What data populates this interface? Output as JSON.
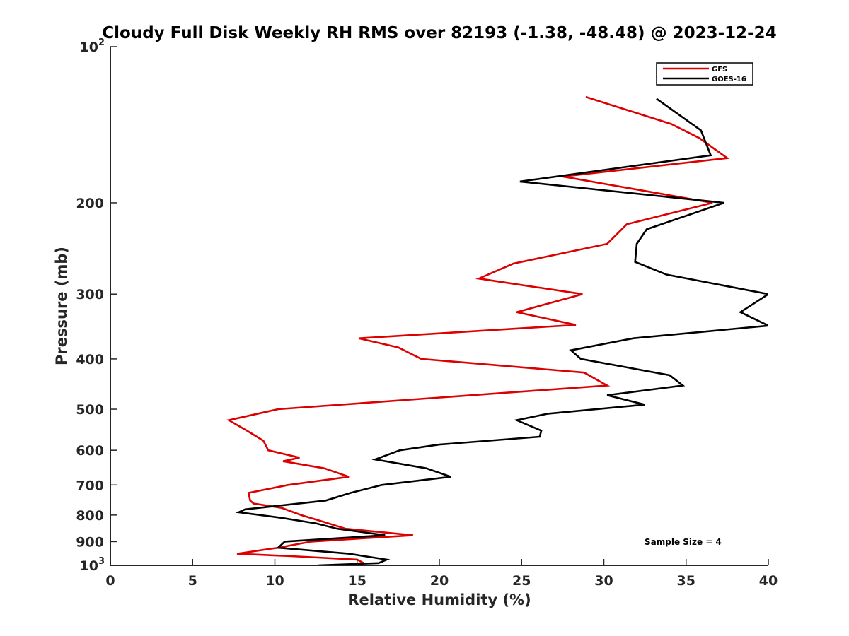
{
  "chart_data": {
    "type": "line",
    "title": "Cloudy Full Disk Weekly RH RMS over 82193 (-1.38, -48.48) @ 2023-12-24",
    "xlabel": "Relative Humidity (%)",
    "ylabel": "Pressure (mb)",
    "xlim": [
      0,
      40
    ],
    "ylim": [
      100,
      1000
    ],
    "y_scale": "log",
    "y_reversed": true,
    "grid": false,
    "legend_position": "top-right",
    "x_ticks": [
      0,
      5,
      10,
      15,
      20,
      25,
      30,
      35,
      40
    ],
    "y_ticks": [
      {
        "value": 100,
        "label": "10",
        "sup": "2"
      },
      {
        "value": 200,
        "label": "200"
      },
      {
        "value": 300,
        "label": "300"
      },
      {
        "value": 400,
        "label": "400"
      },
      {
        "value": 500,
        "label": "500"
      },
      {
        "value": 600,
        "label": "600"
      },
      {
        "value": 700,
        "label": "700"
      },
      {
        "value": 800,
        "label": "800"
      },
      {
        "value": 900,
        "label": "900"
      },
      {
        "value": 1000,
        "label": "10",
        "sup": "3"
      }
    ],
    "annotation": "Sample Size = 4",
    "series": [
      {
        "name": "GFS",
        "color": "#dd0000",
        "points": [
          [
            28.9,
            125
          ],
          [
            34.1,
            141
          ],
          [
            35.8,
            150
          ],
          [
            37.5,
            164
          ],
          [
            27.5,
            178
          ],
          [
            36.6,
            200
          ],
          [
            31.4,
            220
          ],
          [
            30.2,
            240
          ],
          [
            24.5,
            262
          ],
          [
            22.4,
            280
          ],
          [
            28.7,
            300
          ],
          [
            24.7,
            325
          ],
          [
            28.3,
            344
          ],
          [
            15.1,
            365
          ],
          [
            17.5,
            380
          ],
          [
            18.9,
            400
          ],
          [
            28.8,
            425
          ],
          [
            30.2,
            450
          ],
          [
            10.2,
            500
          ],
          [
            7.2,
            525
          ],
          [
            8.3,
            550
          ],
          [
            9.3,
            575
          ],
          [
            9.6,
            600
          ],
          [
            11.5,
            620
          ],
          [
            10.5,
            630
          ],
          [
            13.0,
            650
          ],
          [
            14.5,
            675
          ],
          [
            10.8,
            700
          ],
          [
            8.4,
            725
          ],
          [
            8.5,
            750
          ],
          [
            8.7,
            760
          ],
          [
            10.4,
            775
          ],
          [
            11.6,
            800
          ],
          [
            13.0,
            825
          ],
          [
            14.3,
            850
          ],
          [
            18.4,
            875
          ],
          [
            12.2,
            900
          ],
          [
            10.2,
            925
          ],
          [
            7.7,
            950
          ],
          [
            11.0,
            960
          ],
          [
            15.0,
            975
          ],
          [
            15.4,
            990
          ]
        ]
      },
      {
        "name": "GOES-16",
        "color": "#000000",
        "points": [
          [
            33.2,
            126
          ],
          [
            35.9,
            145
          ],
          [
            36.5,
            162
          ],
          [
            24.9,
            182
          ],
          [
            37.3,
            200
          ],
          [
            32.6,
            225
          ],
          [
            32.0,
            240
          ],
          [
            31.9,
            260
          ],
          [
            33.8,
            275
          ],
          [
            40.0,
            300
          ],
          [
            38.3,
            325
          ],
          [
            40.0,
            345
          ],
          [
            31.8,
            365
          ],
          [
            28.0,
            385
          ],
          [
            28.6,
            400
          ],
          [
            34.0,
            430
          ],
          [
            34.8,
            450
          ],
          [
            30.2,
            470
          ],
          [
            32.5,
            490
          ],
          [
            26.6,
            510
          ],
          [
            24.7,
            525
          ],
          [
            26.2,
            550
          ],
          [
            26.1,
            565
          ],
          [
            20.0,
            585
          ],
          [
            17.6,
            600
          ],
          [
            16.1,
            625
          ],
          [
            19.2,
            650
          ],
          [
            20.7,
            675
          ],
          [
            16.5,
            700
          ],
          [
            14.6,
            725
          ],
          [
            13.1,
            750
          ],
          [
            8.2,
            780
          ],
          [
            7.8,
            790
          ],
          [
            10.4,
            810
          ],
          [
            12.5,
            830
          ],
          [
            13.8,
            850
          ],
          [
            16.7,
            875
          ],
          [
            10.6,
            900
          ],
          [
            10.2,
            925
          ],
          [
            14.5,
            950
          ],
          [
            16.8,
            975
          ],
          [
            16.3,
            990
          ],
          [
            12.6,
            1000
          ]
        ]
      }
    ]
  }
}
